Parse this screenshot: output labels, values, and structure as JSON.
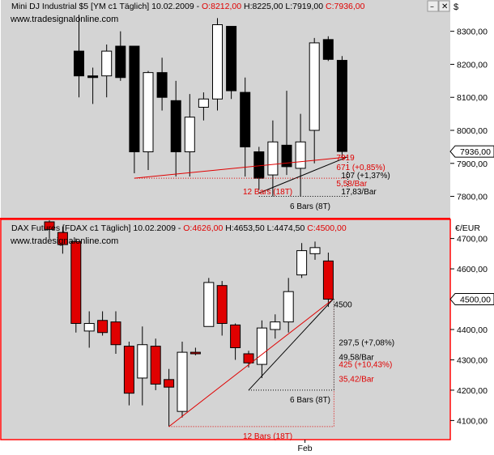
{
  "colors": {
    "plot_bg": "#d4d4d4",
    "axis_bg": "#ffffff",
    "up_fill": "#ffffff",
    "down_fill_top": "#000000",
    "down_fill_bottom": "#e00000",
    "frame": "#ff0000",
    "annotation_red": "#e00000",
    "annotation_black": "#000000"
  },
  "chart_data": [
    {
      "type": "candlestick",
      "name": "top",
      "header": {
        "instrument": "Mini DJ Industrial $5 [YM c1  Täglich] 10.02.2009 - ",
        "open": "O:8212,00",
        "high": "H:8225,00",
        "low": "L:7919,00",
        "close": "C:7936,00"
      },
      "watermark": "www.tradesignalonline.com",
      "y_ticks": [
        7800,
        7900,
        8000,
        8100,
        8200,
        8300
      ],
      "y_tick_labels": [
        "7800,00",
        "7900,00",
        "8000,00",
        "8100,00",
        "8200,00",
        "8300,00"
      ],
      "ylim": [
        7745,
        8385
      ],
      "last_price_label": "7936,00",
      "last_price": 7936,
      "candles": [
        {
          "o": 8240,
          "h": 8350,
          "l": 8100,
          "c": 8165
        },
        {
          "o": 8165,
          "h": 8190,
          "l": 8080,
          "c": 8160
        },
        {
          "o": 8165,
          "h": 8260,
          "l": 8100,
          "c": 8240
        },
        {
          "o": 8255,
          "h": 8300,
          "l": 8150,
          "c": 8160
        },
        {
          "o": 8255,
          "h": 8255,
          "l": 7870,
          "c": 7935
        },
        {
          "o": 7935,
          "h": 8180,
          "l": 7880,
          "c": 8175
        },
        {
          "o": 8175,
          "h": 8220,
          "l": 8060,
          "c": 8100
        },
        {
          "o": 8090,
          "h": 8150,
          "l": 7860,
          "c": 7935
        },
        {
          "o": 7935,
          "h": 8110,
          "l": 7860,
          "c": 8040
        },
        {
          "o": 8070,
          "h": 8115,
          "l": 8030,
          "c": 8095
        },
        {
          "o": 8095,
          "h": 8340,
          "l": 8060,
          "c": 8320
        },
        {
          "o": 8315,
          "h": 8315,
          "l": 8095,
          "c": 8120
        },
        {
          "o": 8115,
          "h": 8160,
          "l": 7860,
          "c": 7950
        },
        {
          "o": 7935,
          "h": 7950,
          "l": 7820,
          "c": 7855
        },
        {
          "o": 7865,
          "h": 8030,
          "l": 7800,
          "c": 7965
        },
        {
          "o": 7955,
          "h": 8120,
          "l": 7865,
          "c": 7890
        },
        {
          "o": 7885,
          "h": 8050,
          "l": 7800,
          "c": 7965
        },
        {
          "o": 8000,
          "h": 8280,
          "l": 7900,
          "c": 8265
        },
        {
          "o": 8275,
          "h": 8285,
          "l": 8210,
          "c": 8215
        },
        {
          "o": 8212,
          "h": 8225,
          "l": 7919,
          "c": 7936
        }
      ],
      "annotations": {
        "red_line": {
          "from_bar": 4,
          "from_price": 7855,
          "to_bar": 19,
          "to_price": 7919
        },
        "black_line": {
          "from_bar": 13,
          "from_price": 7810,
          "to_bar": 19,
          "to_price": 7919
        },
        "red_value": "7919",
        "red_change": "671 (+0,85%)",
        "black_change": "107 (+1,37%)",
        "red_per_bar": "5,58/Bar",
        "black_per_bar": "17,83/Bar",
        "red_bars": "12 Bars (18T)",
        "black_bars": "6 Bars (8T)"
      }
    },
    {
      "type": "candlestick",
      "name": "bottom",
      "header": {
        "instrument": "DAX Futures [FDAX c1  Täglich] 10.02.2009 - ",
        "open": "O:4626,00",
        "high": "H:4653,50",
        "low": "L:4474,50",
        "close": "C:4500,00"
      },
      "watermark": "www.tradesignalonline.com",
      "axis_title": "€/EUR",
      "y_ticks": [
        4100,
        4200,
        4300,
        4400,
        4500,
        4600,
        4700
      ],
      "y_tick_labels": [
        "4100,00",
        "4200,00",
        "4300,00",
        "4400,00",
        "4500,00",
        "4600,00",
        "4700,00"
      ],
      "ylim": [
        4045,
        4755
      ],
      "last_price_label": "4500,00",
      "last_price": 4500,
      "x_tick_label": "Feb",
      "x_tick_bar": 19,
      "candles": [
        {
          "o": 4755,
          "h": 4760,
          "l": 4700,
          "c": 4730
        },
        {
          "o": 4720,
          "h": 4740,
          "l": 4650,
          "c": 4680
        },
        {
          "o": 4690,
          "h": 4700,
          "l": 4390,
          "c": 4420
        },
        {
          "o": 4395,
          "h": 4460,
          "l": 4340,
          "c": 4420
        },
        {
          "o": 4430,
          "h": 4460,
          "l": 4380,
          "c": 4390
        },
        {
          "o": 4425,
          "h": 4460,
          "l": 4320,
          "c": 4350
        },
        {
          "o": 4345,
          "h": 4360,
          "l": 4150,
          "c": 4190
        },
        {
          "o": 4240,
          "h": 4410,
          "l": 4150,
          "c": 4350
        },
        {
          "o": 4345,
          "h": 4370,
          "l": 4200,
          "c": 4220
        },
        {
          "o": 4235,
          "h": 4270,
          "l": 4080,
          "c": 4210
        },
        {
          "o": 4130,
          "h": 4360,
          "l": 4110,
          "c": 4325
        },
        {
          "o": 4325,
          "h": 4340,
          "l": 4315,
          "c": 4320
        },
        {
          "o": 4410,
          "h": 4570,
          "l": 4410,
          "c": 4555
        },
        {
          "o": 4545,
          "h": 4560,
          "l": 4380,
          "c": 4420
        },
        {
          "o": 4415,
          "h": 4420,
          "l": 4300,
          "c": 4340
        },
        {
          "o": 4320,
          "h": 4330,
          "l": 4275,
          "c": 4290
        },
        {
          "o": 4285,
          "h": 4430,
          "l": 4240,
          "c": 4405
        },
        {
          "o": 4400,
          "h": 4450,
          "l": 4370,
          "c": 4425
        },
        {
          "o": 4425,
          "h": 4570,
          "l": 4390,
          "c": 4525
        },
        {
          "o": 4580,
          "h": 4685,
          "l": 4570,
          "c": 4660
        },
        {
          "o": 4650,
          "h": 4690,
          "l": 4630,
          "c": 4670
        },
        {
          "o": 4626,
          "h": 4653.5,
          "l": 4474.5,
          "c": 4500
        }
      ],
      "annotations": {
        "red_line": {
          "from_bar": 9,
          "from_price": 4080,
          "to_bar": 21,
          "to_price": 4500
        },
        "black_line": {
          "from_bar": 15,
          "from_price": 4200,
          "to_bar": 21,
          "to_price": 4500
        },
        "value": "4500",
        "black_change": "297,5 (+7,08%)",
        "black_per_bar": "49,58/Bar",
        "red_change": "425 (+10,43%)",
        "red_per_bar": "35,42/Bar",
        "black_bars": "6 Bars (8T)",
        "red_bars": "12 Bars (18T)"
      }
    }
  ]
}
